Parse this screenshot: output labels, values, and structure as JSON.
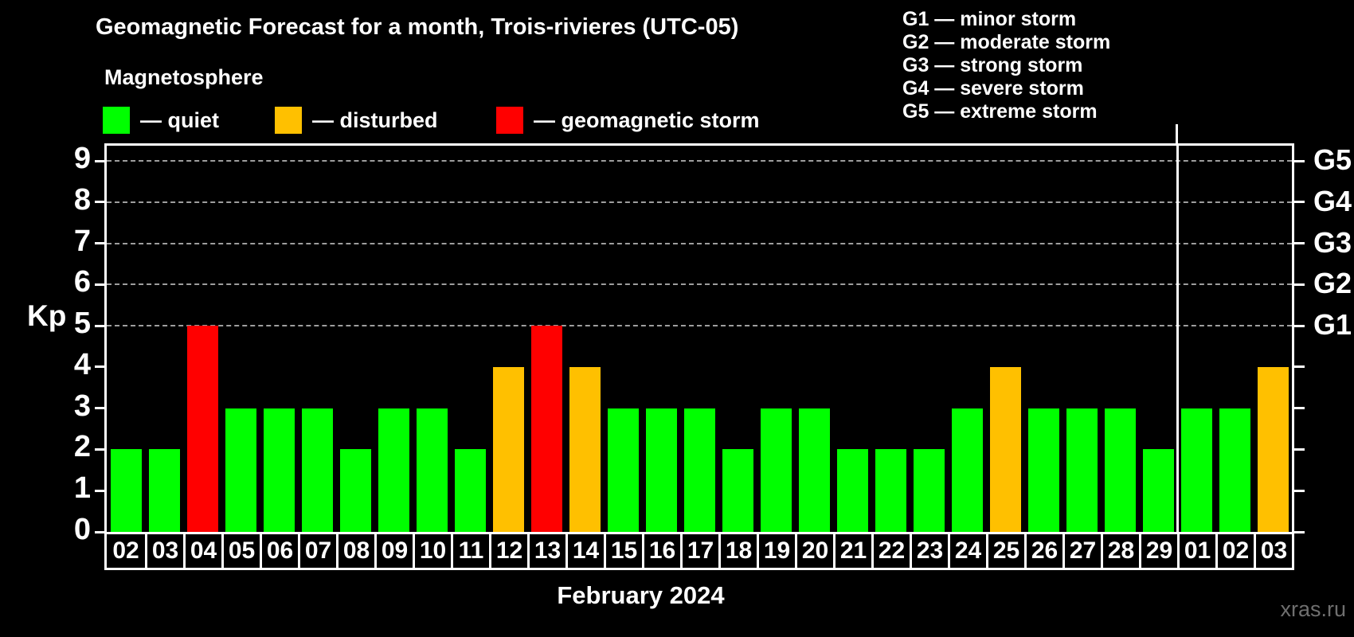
{
  "header": {
    "title": "Geomagnetic Forecast for a month, Trois-rivieres (UTC-05)",
    "subtitle": "Magnetosphere"
  },
  "legend": {
    "items": [
      {
        "name": "quiet",
        "label": "— quiet",
        "color": "#00ff00"
      },
      {
        "name": "disturbed",
        "label": "— disturbed",
        "color": "#ffc000"
      },
      {
        "name": "geomagnetic-storm",
        "label": "— geomagnetic storm",
        "color": "#ff0000"
      }
    ]
  },
  "g_scale_legend": {
    "items": [
      "G1 — minor storm",
      "G2 — moderate storm",
      "G3 — strong storm",
      "G4 — severe storm",
      "G5 — extreme storm"
    ]
  },
  "colors": {
    "quiet": "#00ff00",
    "disturbed": "#ffc000",
    "storm": "#ff0000",
    "axis": "#ffffff",
    "grid": "#9e9e9e",
    "background": "#000000",
    "watermark": "#6f6f6f"
  },
  "watermark": "xras.ru",
  "chart_data": {
    "type": "bar",
    "title": "Geomagnetic Forecast for a month, Trois-rivieres (UTC-05)",
    "xlabel": "February 2024",
    "ylabel": "Kp",
    "ylim": [
      0,
      9.4
    ],
    "yticks": [
      0,
      1,
      2,
      3,
      4,
      5,
      6,
      7,
      8,
      9
    ],
    "grid_kp": [
      5,
      6,
      7,
      8,
      9
    ],
    "grid_style": "horizontal dashed gray lines at Kp 5–9 only",
    "legend_position": "top-left",
    "right_axis": [
      {
        "kp": 5,
        "label": "G1"
      },
      {
        "kp": 6,
        "label": "G2"
      },
      {
        "kp": 7,
        "label": "G3"
      },
      {
        "kp": 8,
        "label": "G4"
      },
      {
        "kp": 9,
        "label": "G5"
      }
    ],
    "month_separator_before_index": 28,
    "categories": [
      "02",
      "03",
      "04",
      "05",
      "06",
      "07",
      "08",
      "09",
      "10",
      "11",
      "12",
      "13",
      "14",
      "15",
      "16",
      "17",
      "18",
      "19",
      "20",
      "21",
      "22",
      "23",
      "24",
      "25",
      "26",
      "27",
      "28",
      "29",
      "01",
      "02",
      "03"
    ],
    "values": [
      2,
      2,
      5,
      3,
      3,
      3,
      2,
      3,
      3,
      2,
      4,
      5,
      4,
      3,
      3,
      3,
      2,
      3,
      3,
      2,
      2,
      2,
      3,
      4,
      3,
      3,
      3,
      2,
      3,
      3,
      4
    ],
    "statuses": [
      "quiet",
      "quiet",
      "storm",
      "quiet",
      "quiet",
      "quiet",
      "quiet",
      "quiet",
      "quiet",
      "quiet",
      "disturbed",
      "storm",
      "disturbed",
      "quiet",
      "quiet",
      "quiet",
      "quiet",
      "quiet",
      "quiet",
      "quiet",
      "quiet",
      "quiet",
      "quiet",
      "disturbed",
      "quiet",
      "quiet",
      "quiet",
      "quiet",
      "quiet",
      "quiet",
      "disturbed"
    ]
  }
}
